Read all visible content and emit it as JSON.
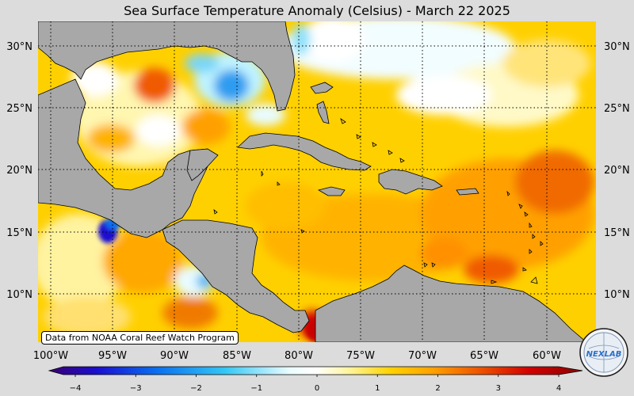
{
  "title": "Sea Surface Temperature Anomaly (Celsius) - March 22 2025",
  "credit": "Data from NOAA Coral Reef Watch Program",
  "logo_text": "NEXLAB",
  "lat_labels": [
    "30°N",
    "25°N",
    "20°N",
    "15°N",
    "10°N"
  ],
  "lon_labels": [
    "100°W",
    "95°W",
    "90°W",
    "85°W",
    "80°W",
    "75°W",
    "70°W",
    "65°W",
    "60°W"
  ],
  "colorbar": {
    "ticks": [
      "−4",
      "−3",
      "−2",
      "−1",
      "0",
      "1",
      "2",
      "3",
      "4"
    ],
    "range": [
      -4,
      4
    ],
    "colors": [
      "#3a0070",
      "#1a0fd0",
      "#0a6ef0",
      "#33c8f5",
      "#eafcff",
      "#ffffff",
      "#fff5a0",
      "#ffd200",
      "#ffa000",
      "#f05a00",
      "#d20000",
      "#8a0000"
    ]
  },
  "map_colors": {
    "land": "#a8a8a8",
    "coast": "#000000",
    "grid": "#000000"
  }
}
